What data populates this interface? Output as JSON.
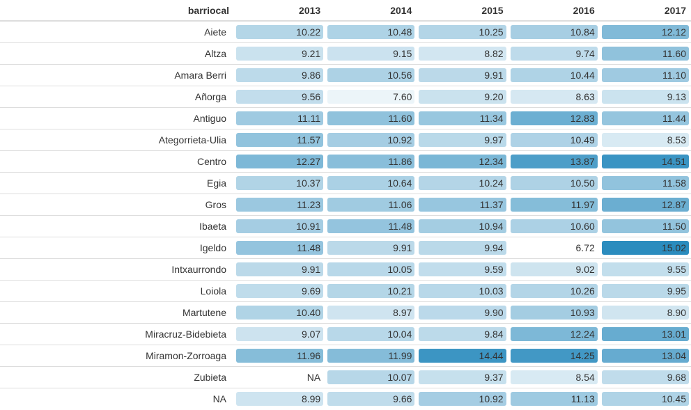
{
  "table": {
    "header": [
      "barriocal",
      "2013",
      "2014",
      "2015",
      "2016",
      "2017"
    ],
    "rows": [
      {
        "name": "Aiete",
        "values": [
          "10.22",
          "10.48",
          "10.25",
          "10.84",
          "12.12"
        ]
      },
      {
        "name": "Altza",
        "values": [
          "9.21",
          "9.15",
          "8.82",
          "9.74",
          "11.60"
        ]
      },
      {
        "name": "Amara Berri",
        "values": [
          "9.86",
          "10.56",
          "9.91",
          "10.44",
          "11.10"
        ]
      },
      {
        "name": "Añorga",
        "values": [
          "9.56",
          "7.60",
          "9.20",
          "8.63",
          "9.13"
        ]
      },
      {
        "name": "Antiguo",
        "values": [
          "11.11",
          "11.60",
          "11.34",
          "12.83",
          "11.44"
        ]
      },
      {
        "name": "Ategorrieta-Ulia",
        "values": [
          "11.57",
          "10.92",
          "9.97",
          "10.49",
          "8.53"
        ]
      },
      {
        "name": "Centro",
        "values": [
          "12.27",
          "11.86",
          "12.34",
          "13.87",
          "14.51"
        ]
      },
      {
        "name": "Egia",
        "values": [
          "10.37",
          "10.64",
          "10.24",
          "10.50",
          "11.58"
        ]
      },
      {
        "name": "Gros",
        "values": [
          "11.23",
          "11.06",
          "11.37",
          "11.97",
          "12.87"
        ]
      },
      {
        "name": "Ibaeta",
        "values": [
          "10.91",
          "11.48",
          "10.94",
          "10.60",
          "11.50"
        ]
      },
      {
        "name": "Igeldo",
        "values": [
          "11.48",
          "9.91",
          "9.94",
          "6.72",
          "15.02"
        ]
      },
      {
        "name": "Intxaurrondo",
        "values": [
          "9.91",
          "10.05",
          "9.59",
          "9.02",
          "9.55"
        ]
      },
      {
        "name": "Loiola",
        "values": [
          "9.69",
          "10.21",
          "10.03",
          "10.26",
          "9.95"
        ]
      },
      {
        "name": "Martutene",
        "values": [
          "10.40",
          "8.97",
          "9.90",
          "10.93",
          "8.90"
        ]
      },
      {
        "name": "Miracruz-Bidebieta",
        "values": [
          "9.07",
          "10.04",
          "9.84",
          "12.24",
          "13.01"
        ]
      },
      {
        "name": "Miramon-Zorroaga",
        "values": [
          "11.96",
          "11.99",
          "14.44",
          "14.25",
          "13.04"
        ]
      },
      {
        "name": "Zubieta",
        "values": [
          "NA",
          "10.07",
          "9.37",
          "8.54",
          "9.68"
        ]
      },
      {
        "name": "NA",
        "values": [
          "8.99",
          "9.66",
          "10.92",
          "11.13",
          "10.45"
        ]
      }
    ]
  },
  "color_scale": {
    "min": 6.72,
    "max": 15.02,
    "low": "#ffffff",
    "high": "#2b8cbe"
  }
}
